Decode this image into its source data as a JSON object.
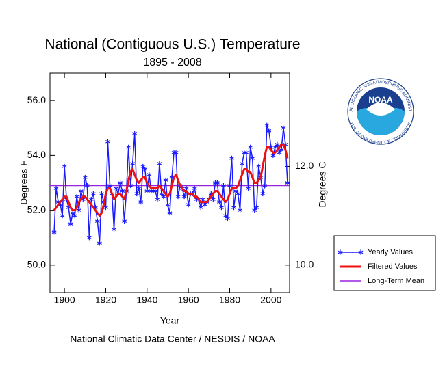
{
  "chart_data": {
    "type": "line",
    "title": "National (Contiguous U.S.) Temperature",
    "subtitle": "1895 - 2008",
    "x_label": "Year",
    "y_label": "Degrees F",
    "y2_label": "Degrees C",
    "footer": "National Climatic Data Center / NESDIS / NOAA",
    "x": [
      1895,
      1896,
      1897,
      1898,
      1899,
      1900,
      1901,
      1902,
      1903,
      1904,
      1905,
      1906,
      1907,
      1908,
      1909,
      1910,
      1911,
      1912,
      1913,
      1914,
      1915,
      1916,
      1917,
      1918,
      1919,
      1920,
      1921,
      1922,
      1923,
      1924,
      1925,
      1926,
      1927,
      1928,
      1929,
      1930,
      1931,
      1932,
      1933,
      1934,
      1935,
      1936,
      1937,
      1938,
      1939,
      1940,
      1941,
      1942,
      1943,
      1944,
      1945,
      1946,
      1947,
      1948,
      1949,
      1950,
      1951,
      1952,
      1953,
      1954,
      1955,
      1956,
      1957,
      1958,
      1959,
      1960,
      1961,
      1962,
      1963,
      1964,
      1965,
      1966,
      1967,
      1968,
      1969,
      1970,
      1971,
      1972,
      1973,
      1974,
      1975,
      1976,
      1977,
      1978,
      1979,
      1980,
      1981,
      1982,
      1983,
      1984,
      1985,
      1986,
      1987,
      1988,
      1989,
      1990,
      1991,
      1992,
      1993,
      1994,
      1995,
      1996,
      1997,
      1998,
      1999,
      2000,
      2001,
      2002,
      2003,
      2004,
      2005,
      2006,
      2007,
      2008
    ],
    "series": [
      {
        "name": "Yearly Values",
        "color": "#1a1aff",
        "marker": "asterisk",
        "values": [
          51.2,
          52.8,
          52.3,
          52.2,
          51.8,
          53.6,
          52.4,
          52.1,
          51.5,
          51.9,
          51.8,
          52.5,
          52.0,
          52.7,
          52.4,
          53.2,
          52.9,
          51.0,
          52.4,
          52.6,
          52.1,
          51.6,
          50.8,
          52.6,
          52.3,
          52.1,
          54.5,
          52.9,
          52.6,
          51.3,
          52.8,
          52.6,
          53.0,
          52.7,
          51.6,
          52.7,
          54.3,
          52.9,
          53.7,
          54.8,
          52.6,
          52.8,
          52.3,
          53.6,
          53.5,
          52.7,
          53.3,
          52.7,
          52.7,
          52.7,
          52.4,
          53.7,
          52.6,
          52.5,
          53.1,
          52.2,
          51.9,
          53.2,
          54.1,
          54.1,
          52.5,
          52.9,
          52.8,
          52.5,
          52.8,
          52.2,
          52.6,
          52.6,
          52.8,
          52.4,
          52.4,
          52.1,
          52.4,
          52.2,
          52.3,
          52.4,
          52.6,
          52.4,
          53.0,
          53.0,
          52.3,
          52.1,
          52.9,
          51.8,
          51.7,
          52.9,
          53.9,
          52.1,
          52.7,
          52.6,
          52.0,
          53.7,
          54.1,
          54.1,
          52.8,
          54.3,
          53.9,
          52.0,
          52.1,
          53.6,
          53.2,
          52.6,
          52.9,
          55.1,
          54.9,
          54.3,
          54.0,
          54.3,
          54.4,
          54.1,
          54.2,
          55.0,
          54.4,
          53.0
        ]
      },
      {
        "name": "Filtered Values",
        "color": "#ee1111",
        "values": [
          52.0,
          52.1,
          52.2,
          52.3,
          52.4,
          52.5,
          52.5,
          52.3,
          52.1,
          52.0,
          52.0,
          52.1,
          52.3,
          52.4,
          52.5,
          52.5,
          52.4,
          52.3,
          52.2,
          52.1,
          52.0,
          51.9,
          51.8,
          51.9,
          52.2,
          52.6,
          52.8,
          52.8,
          52.6,
          52.4,
          52.5,
          52.6,
          52.6,
          52.5,
          52.4,
          52.7,
          53.1,
          53.4,
          53.5,
          53.3,
          53.1,
          53.0,
          53.1,
          53.2,
          53.2,
          53.0,
          52.9,
          52.8,
          52.8,
          52.8,
          52.8,
          52.9,
          52.8,
          52.7,
          52.6,
          52.5,
          52.6,
          52.9,
          53.2,
          53.3,
          53.1,
          52.9,
          52.8,
          52.7,
          52.7,
          52.6,
          52.6,
          52.6,
          52.5,
          52.5,
          52.4,
          52.3,
          52.3,
          52.3,
          52.3,
          52.4,
          52.5,
          52.6,
          52.7,
          52.7,
          52.6,
          52.5,
          52.4,
          52.3,
          52.4,
          52.6,
          52.8,
          52.8,
          52.8,
          52.9,
          53.1,
          53.3,
          53.5,
          53.5,
          53.4,
          53.4,
          53.2,
          53.0,
          53.0,
          53.1,
          53.2,
          53.6,
          54.0,
          54.3,
          54.3,
          54.2,
          54.1,
          54.1,
          54.2,
          54.3,
          54.4,
          54.4,
          54.2,
          53.9
        ]
      }
    ],
    "reference_lines": [
      {
        "name": "Long-Term Mean",
        "color": "#9922dd",
        "value": 52.9
      }
    ],
    "xlim": [
      1893,
      2009
    ],
    "xticks": [
      1900,
      1920,
      1940,
      1960,
      1980,
      2000
    ],
    "ylim": [
      49,
      57
    ],
    "yticks": [
      {
        "value": 50,
        "label": "50.0"
      },
      {
        "value": 52,
        "label": "52.0"
      },
      {
        "value": 54,
        "label": "54.0"
      },
      {
        "value": 56,
        "label": "56.0"
      }
    ],
    "y2lim": [
      9.444,
      13.889
    ],
    "y2ticks": [
      {
        "value": 10,
        "label": "10.0"
      },
      {
        "value": 12,
        "label": "12.0"
      }
    ],
    "legend": "right"
  },
  "logo": {
    "text": "NOAA",
    "ring_top": "NATIONAL OCEANIC AND ATMOSPHERIC ADMINISTRATION",
    "ring_bottom": "U.S. DEPARTMENT OF COMMERCE"
  }
}
